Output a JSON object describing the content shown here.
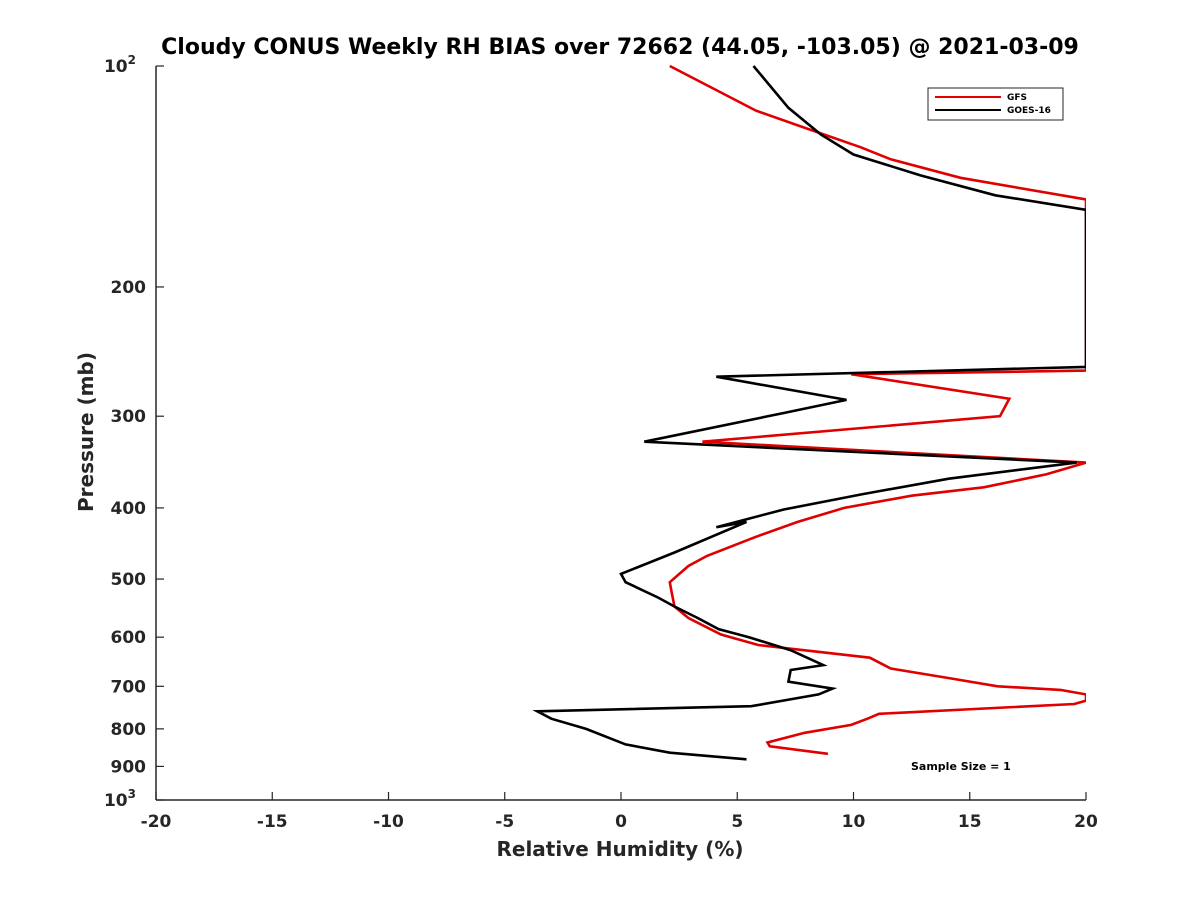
{
  "chart_data": {
    "type": "line",
    "title": "Cloudy CONUS Weekly RH BIAS over 72662 (44.05, -103.05) @ 2021-03-09",
    "xlabel": "Relative Humidity (%)",
    "ylabel": "Pressure (mb)",
    "xlim": [
      -20,
      20
    ],
    "ylim": [
      100,
      1000
    ],
    "y_scale": "log",
    "y_reversed": true,
    "x_ticks": [
      {
        "value": -20,
        "label": "-20"
      },
      {
        "value": -15,
        "label": "-15"
      },
      {
        "value": -10,
        "label": "-10"
      },
      {
        "value": -5,
        "label": "-5"
      },
      {
        "value": 0,
        "label": "0"
      },
      {
        "value": 5,
        "label": "5"
      },
      {
        "value": 10,
        "label": "10"
      },
      {
        "value": 15,
        "label": "15"
      },
      {
        "value": 20,
        "label": "20"
      }
    ],
    "y_ticks": [
      {
        "value": 100,
        "label": "10",
        "exp": "2"
      },
      {
        "value": 200,
        "label": "200"
      },
      {
        "value": 300,
        "label": "300"
      },
      {
        "value": 400,
        "label": "400"
      },
      {
        "value": 500,
        "label": "500"
      },
      {
        "value": 600,
        "label": "600"
      },
      {
        "value": 700,
        "label": "700"
      },
      {
        "value": 800,
        "label": "800"
      },
      {
        "value": 900,
        "label": "900"
      },
      {
        "value": 1000,
        "label": "10",
        "exp": "3"
      }
    ],
    "legend_position": "top-right",
    "grid": false,
    "annotation": "Sample Size = 1",
    "series": [
      {
        "name": "GFS",
        "color": "#e00000",
        "points": [
          [
            2.1,
            100
          ],
          [
            5.8,
            115
          ],
          [
            8.1,
            122
          ],
          [
            10.3,
            129
          ],
          [
            11.6,
            134
          ],
          [
            14.6,
            142
          ],
          [
            20.0,
            152
          ],
          [
            20.0,
            260
          ],
          [
            9.9,
            263
          ],
          [
            16.7,
            284
          ],
          [
            16.3,
            300
          ],
          [
            3.5,
            325
          ],
          [
            20.0,
            347
          ],
          [
            18.3,
            360
          ],
          [
            15.6,
            375
          ],
          [
            12.5,
            385
          ],
          [
            9.6,
            400
          ],
          [
            7.6,
            418
          ],
          [
            5.8,
            438
          ],
          [
            3.7,
            465
          ],
          [
            2.9,
            480
          ],
          [
            2.1,
            505
          ],
          [
            2.2,
            525
          ],
          [
            2.3,
            545
          ],
          [
            2.9,
            565
          ],
          [
            4.3,
            595
          ],
          [
            5.9,
            615
          ],
          [
            10.7,
            640
          ],
          [
            11.6,
            662
          ],
          [
            14.3,
            684
          ],
          [
            16.2,
            700
          ],
          [
            18.9,
            708
          ],
          [
            20.0,
            718
          ],
          [
            20.0,
            732
          ],
          [
            19.5,
            740
          ],
          [
            11.1,
            763
          ],
          [
            10.6,
            775
          ],
          [
            9.9,
            790
          ],
          [
            7.9,
            810
          ],
          [
            6.3,
            835
          ],
          [
            6.4,
            845
          ],
          [
            8.9,
            865
          ]
        ]
      },
      {
        "name": "GOES-16",
        "color": "#000000",
        "points": [
          [
            5.7,
            100
          ],
          [
            7.2,
            114
          ],
          [
            8.6,
            124
          ],
          [
            10.0,
            132
          ],
          [
            12.9,
            141
          ],
          [
            16.1,
            150
          ],
          [
            20.0,
            157
          ],
          [
            20.0,
            257
          ],
          [
            4.1,
            265
          ],
          [
            9.7,
            285
          ],
          [
            7.0,
            297
          ],
          [
            1.0,
            325
          ],
          [
            19.6,
            347
          ],
          [
            14.1,
            365
          ],
          [
            10.4,
            383
          ],
          [
            7.0,
            402
          ],
          [
            4.1,
            425
          ],
          [
            5.4,
            418
          ],
          [
            2.3,
            460
          ],
          [
            0.0,
            492
          ],
          [
            0.2,
            505
          ],
          [
            1.6,
            530
          ],
          [
            2.3,
            545
          ],
          [
            3.3,
            565
          ],
          [
            4.2,
            585
          ],
          [
            5.5,
            600
          ],
          [
            7.3,
            625
          ],
          [
            8.7,
            655
          ],
          [
            7.3,
            665
          ],
          [
            7.2,
            690
          ],
          [
            9.1,
            705
          ],
          [
            8.5,
            718
          ],
          [
            5.6,
            745
          ],
          [
            -3.6,
            757
          ],
          [
            -3.0,
            775
          ],
          [
            -1.5,
            800
          ],
          [
            0.2,
            840
          ],
          [
            2.1,
            862
          ],
          [
            5.4,
            880
          ]
        ]
      }
    ]
  }
}
